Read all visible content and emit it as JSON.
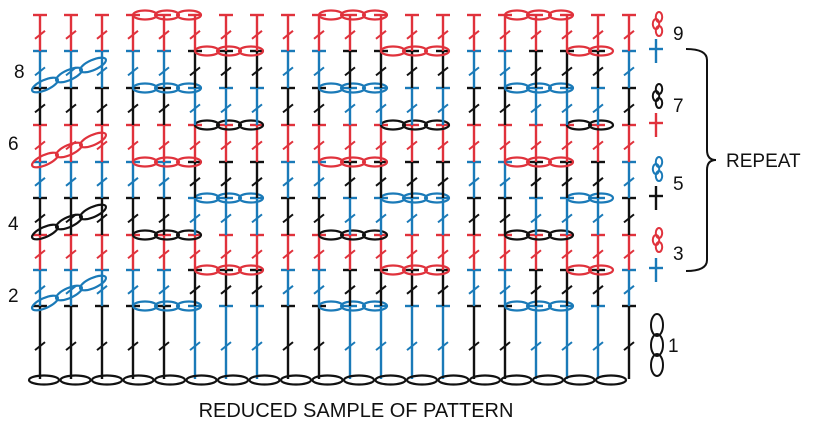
{
  "caption": "REDUCED SAMPLE OF PATTERN",
  "repeat_label": "REPEAT",
  "colors": {
    "black": "#111111",
    "blue": "#1a7ab8",
    "red": "#e0323c"
  },
  "foundation_chain": {
    "row": "1",
    "color": "black"
  },
  "rows": [
    {
      "label": "1",
      "color": "black",
      "symbol": "chain-loop"
    },
    {
      "label": "2",
      "color": "blue",
      "symbol": "post-stitch"
    },
    {
      "label": "3",
      "color": "red",
      "symbol": "chain-loop"
    },
    {
      "label": "4",
      "color": "black",
      "symbol": "post-stitch"
    },
    {
      "label": "5",
      "color": "blue",
      "symbol": "chain-loop"
    },
    {
      "label": "6",
      "color": "red",
      "symbol": "post-stitch"
    },
    {
      "label": "7",
      "color": "black",
      "symbol": "chain-loop"
    },
    {
      "label": "8",
      "color": "blue",
      "symbol": "post-stitch"
    },
    {
      "label": "9",
      "color": "red",
      "symbol": "chain-loop"
    }
  ],
  "repeat_rows": [
    "3",
    "8"
  ]
}
